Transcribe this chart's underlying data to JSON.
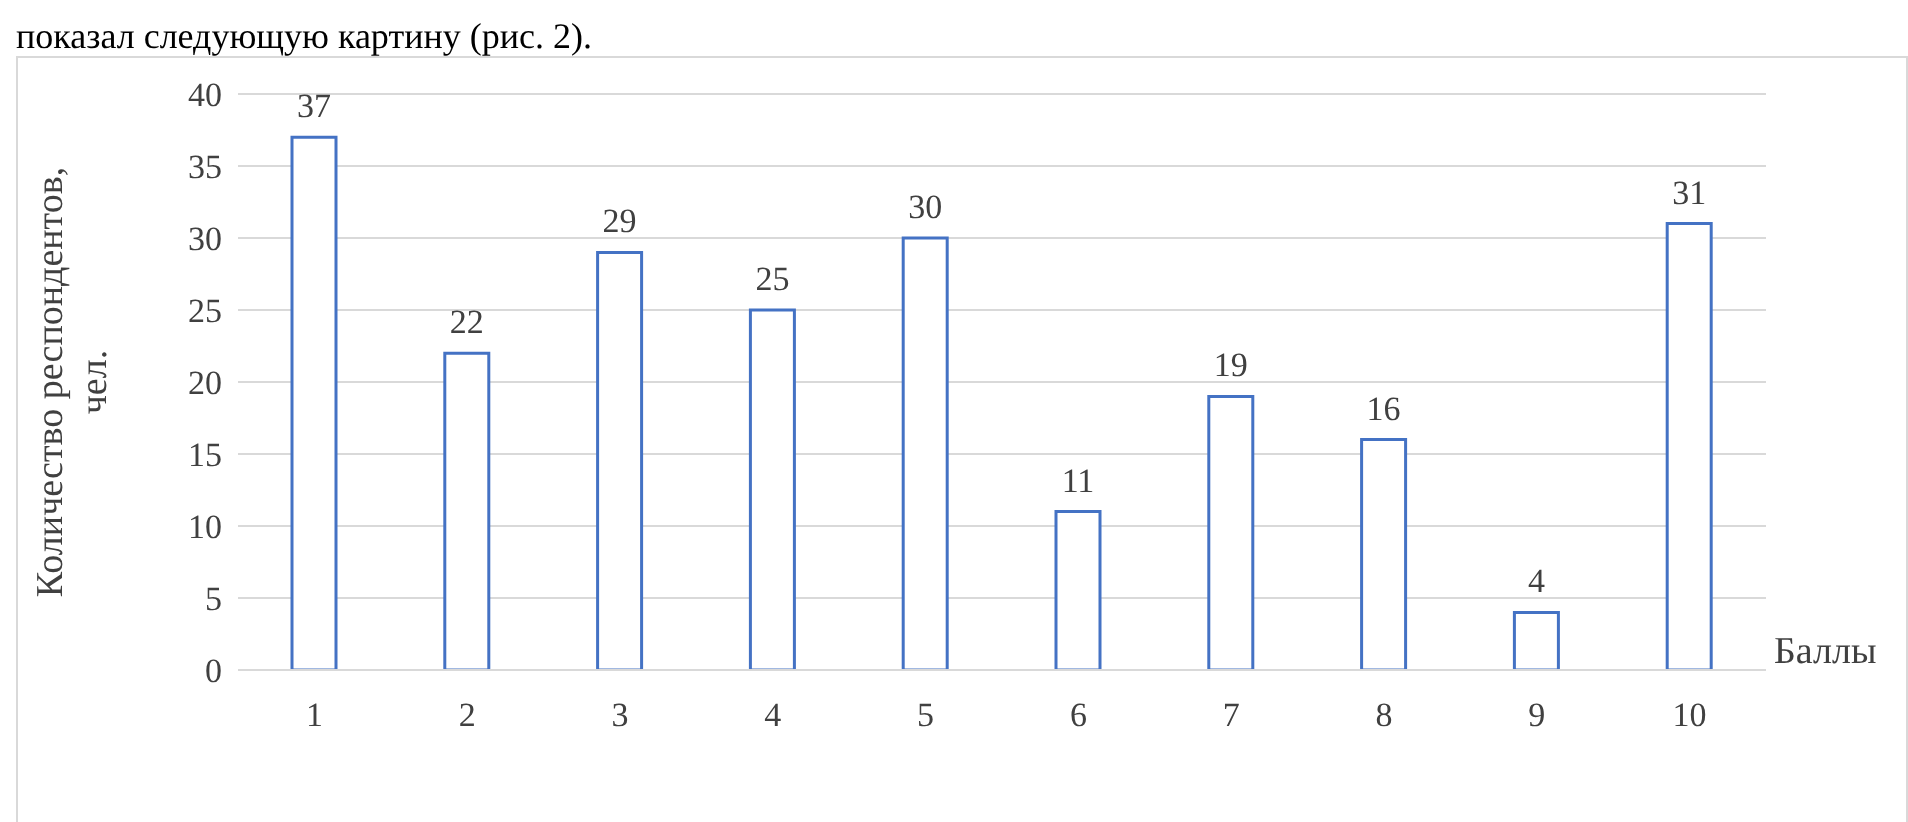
{
  "chart_data": {
    "type": "bar",
    "xlabel": "Баллы",
    "ylabel": "Количество респондентов, чел.",
    "categories": [
      "1",
      "2",
      "3",
      "4",
      "5",
      "6",
      "7",
      "8",
      "9",
      "10"
    ],
    "values": [
      37,
      22,
      29,
      25,
      30,
      11,
      19,
      16,
      4,
      31
    ],
    "color": "#4472c4",
    "ylim": [
      0,
      40
    ],
    "yticks": [
      0,
      5,
      10,
      15,
      20,
      25,
      30,
      35,
      40
    ],
    "grid": "y",
    "data_labels": true,
    "annotations": [
      "показал следующую картину (рис. 2)."
    ]
  }
}
